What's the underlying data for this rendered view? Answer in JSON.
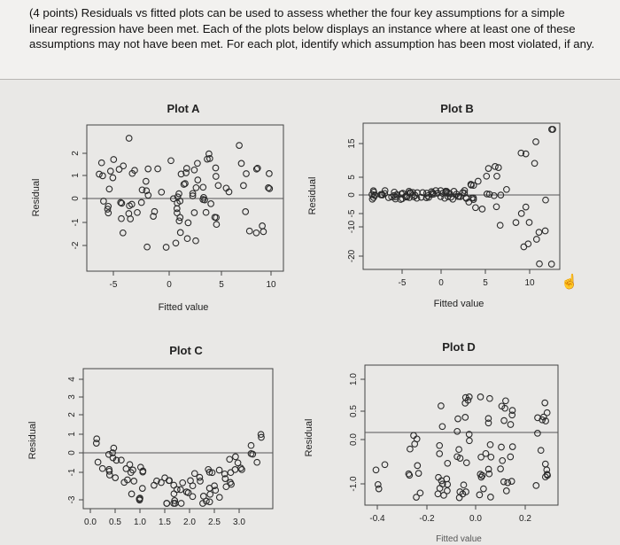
{
  "question": {
    "text": "(4 points) Residuals vs fitted plots can be used to assess whether the four key assumptions for a simple linear regression have been met. Each of the plots below displays an instance where at least one of these assumptions may not have been met. For each plot, identify which assumption has been most violated, if any."
  },
  "plots": [
    {
      "id": "A",
      "title": "Plot A",
      "ylabel": "Residual",
      "xlabel": "Fitted value",
      "xticks": [
        "-5",
        "0",
        "5",
        "10"
      ],
      "yticks": [
        "-2",
        "-1",
        "0",
        "1",
        "2"
      ]
    },
    {
      "id": "B",
      "title": "Plot B",
      "ylabel": "Residual",
      "xlabel": "Fitted value",
      "xticks": [
        "-5",
        "0",
        "5",
        "10"
      ],
      "yticks": [
        "-20",
        "-10",
        "-5",
        "0",
        "5",
        "15"
      ]
    },
    {
      "id": "C",
      "title": "Plot C",
      "ylabel": "Residual",
      "xlabel": "",
      "xticks": [
        "0.0",
        "0.5",
        "1.0",
        "1.5",
        "2.0",
        "2.5",
        "3.0"
      ],
      "yticks": [
        "-3",
        "-1",
        "0",
        "1",
        "2",
        "3",
        "4"
      ]
    },
    {
      "id": "D",
      "title": "Plot D",
      "ylabel": "Residual",
      "xlabel": "Fitted value",
      "xticks": [
        "-0.4",
        "-0.2",
        "0.0",
        "0.2"
      ],
      "yticks": [
        "-1.0",
        "0.0",
        "0.5",
        "1.0"
      ]
    }
  ],
  "icons": {
    "cursor": "hand-cursor-icon"
  }
}
